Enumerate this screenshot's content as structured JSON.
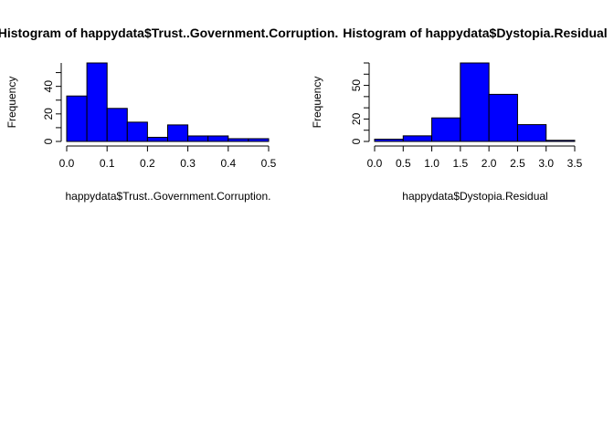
{
  "colors": {
    "bar_fill": "#0000ff",
    "bar_stroke": "#000000",
    "background": "#ffffff",
    "text": "#000000"
  },
  "chart_data": [
    {
      "type": "bar",
      "title": "Histogram of happydata$Trust..Government.Corruption.",
      "xlabel": "happydata$Trust..Government.Corruption.",
      "ylabel": "Frequency",
      "bin_edges": [
        0.0,
        0.05,
        0.1,
        0.15,
        0.2,
        0.25,
        0.3,
        0.35,
        0.4,
        0.45,
        0.5
      ],
      "values": [
        33,
        57,
        24,
        14,
        3,
        12,
        4,
        4,
        2,
        2
      ],
      "xlim": [
        0.0,
        0.5
      ],
      "ylim": [
        0,
        57
      ],
      "xticks": [
        0.0,
        0.1,
        0.2,
        0.3,
        0.4,
        0.5
      ],
      "xtick_labels": [
        "0.0",
        "0.1",
        "0.2",
        "0.3",
        "0.4",
        "0.5"
      ],
      "yticks": [
        0,
        20,
        40
      ],
      "ytick_labels": [
        "0",
        "20",
        "40"
      ],
      "grid": false,
      "legend": "none"
    },
    {
      "type": "bar",
      "title": "Histogram of happydata$Dystopia.Residual",
      "xlabel": "happydata$Dystopia.Residual",
      "ylabel": "Frequency",
      "bin_edges": [
        0.0,
        0.5,
        1.0,
        1.5,
        2.0,
        2.5,
        3.0,
        3.5
      ],
      "values": [
        2,
        5,
        21,
        70,
        42,
        15,
        1
      ],
      "xlim": [
        0.0,
        3.5
      ],
      "ylim": [
        0,
        70
      ],
      "xticks": [
        0.0,
        0.5,
        1.0,
        1.5,
        2.0,
        2.5,
        3.0,
        3.5
      ],
      "xtick_labels": [
        "0.0",
        "0.5",
        "1.0",
        "1.5",
        "2.0",
        "2.5",
        "3.0",
        "3.5"
      ],
      "yticks": [
        0,
        20,
        50
      ],
      "ytick_labels": [
        "0",
        "20",
        "50"
      ],
      "grid": false,
      "legend": "none"
    }
  ]
}
